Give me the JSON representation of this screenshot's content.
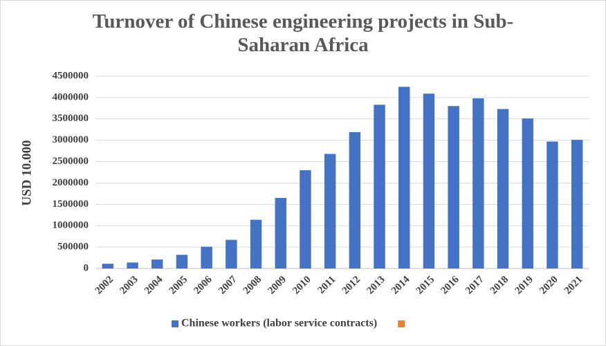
{
  "chart_data": {
    "type": "bar",
    "title": "Turnover of Chinese engineering projects in Sub-Saharan Africa",
    "y_label": "USD 10.000",
    "categories": [
      "2002",
      "2003",
      "2004",
      "2005",
      "2006",
      "2007",
      "2008",
      "2009",
      "2010",
      "2011",
      "2012",
      "2013",
      "2014",
      "2015",
      "2016",
      "2017",
      "2018",
      "2019",
      "2020",
      "2021"
    ],
    "series": [
      {
        "name": "Chinese workers (labor service contracts)",
        "color": "#4472c4",
        "values": [
          110000,
          140000,
          210000,
          320000,
          510000,
          670000,
          1140000,
          1650000,
          2300000,
          2680000,
          3190000,
          3830000,
          4250000,
          4090000,
          3800000,
          3980000,
          3730000,
          3510000,
          2970000,
          3010000
        ]
      },
      {
        "color": "#ed7d31"
      }
    ],
    "ylim": [
      0,
      4500000
    ],
    "yticks": [
      0,
      500000,
      1000000,
      1500000,
      2000000,
      2500000,
      3000000,
      3500000,
      4000000,
      4500000
    ],
    "grid": true,
    "legend": "bottom"
  }
}
